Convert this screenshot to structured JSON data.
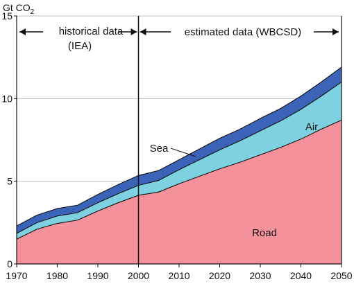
{
  "chart_data": {
    "type": "area",
    "ylabel_main": "Gt CO",
    "ylabel_sub": "2",
    "ylim": [
      0,
      15
    ],
    "xlim": [
      1970,
      2050
    ],
    "x_ticks": [
      "1970",
      "1980",
      "1990",
      "2000",
      "2010",
      "2020",
      "2030",
      "2040",
      "2050"
    ],
    "y_ticks": [
      "0",
      "5",
      "10",
      "15"
    ],
    "grid": "horizontal",
    "stacked": true,
    "x": [
      1970,
      1975,
      1980,
      1985,
      1990,
      1995,
      2000,
      2005,
      2010,
      2015,
      2020,
      2025,
      2030,
      2035,
      2040,
      2045,
      2050
    ],
    "series": [
      {
        "name": "Road",
        "color": "#f4919a",
        "values": [
          1.5,
          2.1,
          2.45,
          2.65,
          3.2,
          3.7,
          4.15,
          4.35,
          4.85,
          5.3,
          5.75,
          6.15,
          6.6,
          7.05,
          7.55,
          8.15,
          8.7
        ]
      },
      {
        "name": "Air",
        "color": "#7dd1e0",
        "values": [
          0.35,
          0.4,
          0.45,
          0.45,
          0.5,
          0.55,
          0.6,
          0.7,
          0.85,
          1.0,
          1.15,
          1.3,
          1.45,
          1.6,
          1.8,
          2.0,
          2.3
        ]
      },
      {
        "name": "Sea",
        "color": "#3b63b8",
        "values": [
          0.45,
          0.45,
          0.45,
          0.45,
          0.5,
          0.55,
          0.6,
          0.6,
          0.6,
          0.65,
          0.7,
          0.7,
          0.75,
          0.75,
          0.8,
          0.85,
          0.9
        ]
      }
    ],
    "divider_x": 2000,
    "annotations": {
      "historical_line1": "historical data",
      "historical_line2": "(IEA)",
      "estimated": "estimated data (WBCSD)",
      "road": "Road",
      "air": "Air",
      "sea": "Sea"
    }
  }
}
